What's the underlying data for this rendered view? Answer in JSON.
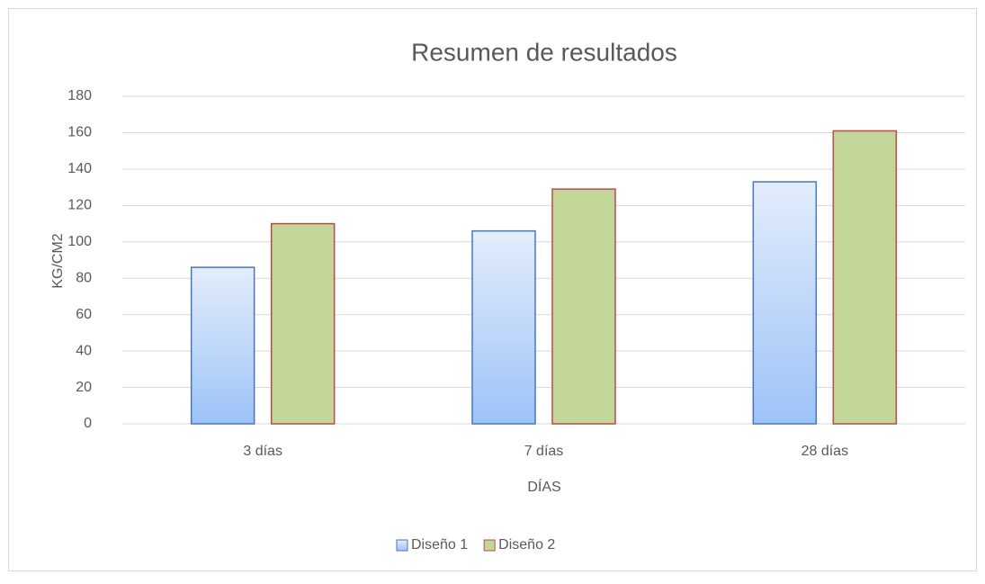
{
  "chart_data": {
    "type": "bar",
    "title": "Resumen de resultados",
    "xlabel": "DÍAS",
    "ylabel": "KG/CM2",
    "categories": [
      "3 días",
      "7 días",
      "28 días"
    ],
    "series": [
      {
        "name": "Diseño 1",
        "color": "#9dc3f7",
        "edgecolor": "#4a76b8",
        "values": [
          86,
          106,
          133
        ]
      },
      {
        "name": "Diseño 2",
        "color": "#c4d79b",
        "edgecolor": "#b94a48",
        "values": [
          110,
          129,
          161
        ]
      }
    ],
    "ylim": [
      0,
      180
    ],
    "yticks": [
      0,
      20,
      40,
      60,
      80,
      100,
      120,
      140,
      160,
      180
    ],
    "grid": true,
    "legend": "bottom"
  }
}
